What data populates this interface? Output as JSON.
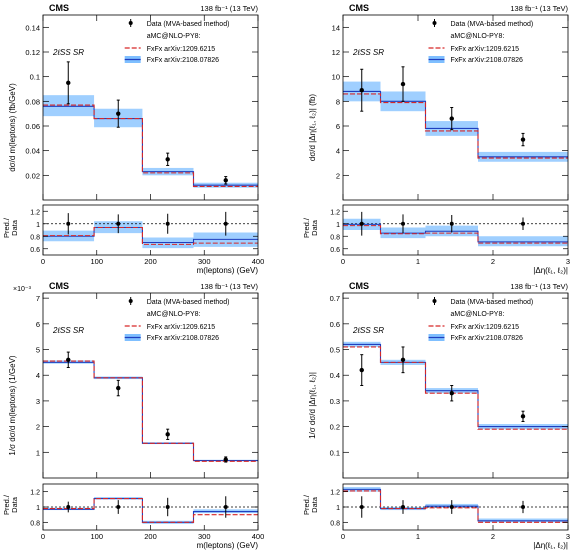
{
  "figure": {
    "experiment": "CMS",
    "lumi": "138 fb⁻¹ (13 TeV)",
    "region": "2ℓSS SR",
    "ratio_ylabel_top": "Pred./",
    "ratio_ylabel_bottom": "Data"
  },
  "legend": {
    "data": "Data (MVA-based method)",
    "header": "aMC@NLO-PY8:",
    "ref1": "FxFx arXiv:1209.6215",
    "ref2": "FxFx arXiv:2108.07826"
  },
  "colors": {
    "ref1_line": "#d62728",
    "ref2_line": "#1f3fbf",
    "ref2_band": "#7fbfff",
    "data": "#000000"
  },
  "chart_data": [
    {
      "type": "line",
      "style": "histogram",
      "name": "top-left",
      "xlabel": "m(leptons) (GeV)",
      "ylabel": "dσ/d m(leptons)  (fb/GeV)",
      "bin_edges": [
        0,
        95,
        185,
        280,
        400
      ],
      "xlim": [
        0,
        400
      ],
      "ylim": [
        0,
        0.15
      ],
      "xticks": [
        0,
        100,
        200,
        300,
        400
      ],
      "yticks": [
        0.02,
        0.04,
        0.06,
        0.08,
        0.1,
        0.12,
        0.14
      ],
      "ytick_labels": [
        "0.02",
        "0.04",
        "0.06",
        "0.08",
        "0.1",
        "0.12",
        "0.14"
      ],
      "exponent": "",
      "series": [
        {
          "name": "FxFx arXiv:1209.6215",
          "values": [
            0.077,
            0.066,
            0.022,
            0.011
          ]
        },
        {
          "name": "FxFx arXiv:2108.07826",
          "values": [
            0.076,
            0.066,
            0.023,
            0.012
          ],
          "band_low": [
            0.068,
            0.059,
            0.02,
            0.01
          ],
          "band_high": [
            0.085,
            0.074,
            0.026,
            0.014
          ]
        }
      ],
      "data": {
        "x": [
          47,
          140,
          232,
          340
        ],
        "y": [
          0.095,
          0.07,
          0.033,
          0.016
        ],
        "yerr": [
          0.017,
          0.011,
          0.005,
          0.003
        ]
      },
      "ratio": {
        "ylim": [
          0.5,
          1.3
        ],
        "yticks": [
          0.6,
          0.8,
          1,
          1.2
        ],
        "ytick_labels": [
          "0.6",
          "0.8",
          "1",
          "1.2"
        ],
        "ref1": [
          0.81,
          0.94,
          0.67,
          0.69
        ],
        "ref2": [
          0.8,
          0.94,
          0.7,
          0.75
        ],
        "band_low": [
          0.72,
          0.85,
          0.61,
          0.63
        ],
        "band_high": [
          0.89,
          1.04,
          0.78,
          0.86
        ],
        "data_yerr": [
          0.17,
          0.15,
          0.16,
          0.19
        ]
      }
    },
    {
      "type": "line",
      "style": "histogram",
      "name": "top-right",
      "xlabel": "|Δη(ℓ₁, ℓ₂)|",
      "ylabel": "dσ/d |Δη(ℓ₁, ℓ₂)|  (fb)",
      "bin_edges": [
        0,
        0.5,
        1.1,
        1.8,
        3
      ],
      "xlim": [
        0,
        3
      ],
      "ylim": [
        0,
        15
      ],
      "xticks": [
        0,
        1,
        2,
        3
      ],
      "yticks": [
        2,
        4,
        6,
        8,
        10,
        12,
        14
      ],
      "ytick_labels": [
        "2",
        "4",
        "6",
        "8",
        "10",
        "12",
        "14"
      ],
      "exponent": "",
      "series": [
        {
          "name": "FxFx arXiv:1209.6215",
          "values": [
            8.6,
            7.9,
            5.6,
            3.4
          ]
        },
        {
          "name": "FxFx arXiv:2108.07826",
          "values": [
            8.8,
            8.0,
            5.8,
            3.5
          ],
          "band_low": [
            8.0,
            7.2,
            5.2,
            3.1
          ],
          "band_high": [
            9.6,
            8.8,
            6.4,
            3.9
          ]
        }
      ],
      "data": {
        "x": [
          0.25,
          0.8,
          1.45,
          2.4
        ],
        "y": [
          8.9,
          9.4,
          6.6,
          4.9
        ],
        "yerr": [
          1.7,
          1.4,
          0.9,
          0.5
        ]
      },
      "ratio": {
        "ylim": [
          0.5,
          1.3
        ],
        "yticks": [
          0.6,
          0.8,
          1,
          1.2
        ],
        "ytick_labels": [
          "0.6",
          "0.8",
          "1",
          "1.2"
        ],
        "ref1": [
          0.97,
          0.84,
          0.85,
          0.69
        ],
        "ref2": [
          0.99,
          0.85,
          0.88,
          0.71
        ],
        "band_low": [
          0.9,
          0.77,
          0.8,
          0.64
        ],
        "band_high": [
          1.08,
          0.94,
          0.97,
          0.8
        ],
        "data_yerr": [
          0.19,
          0.15,
          0.14,
          0.1
        ]
      }
    },
    {
      "type": "line",
      "style": "histogram",
      "name": "bottom-left",
      "xlabel": "m(leptons) (GeV)",
      "ylabel": "1/σ dσ/d m(leptons)  (1/GeV)",
      "bin_edges": [
        0,
        95,
        185,
        280,
        400
      ],
      "xlim": [
        0,
        400
      ],
      "ylim": [
        0,
        0.0072
      ],
      "xticks": [
        0,
        100,
        200,
        300,
        400
      ],
      "yticks": [
        0.001,
        0.002,
        0.003,
        0.004,
        0.005,
        0.006,
        0.007
      ],
      "ytick_labels": [
        "1",
        "2",
        "3",
        "4",
        "5",
        "6",
        "7"
      ],
      "exponent": "×10⁻³",
      "series": [
        {
          "name": "FxFx arXiv:1209.6215",
          "values": [
            0.00455,
            0.0039,
            0.00135,
            0.00065
          ]
        },
        {
          "name": "FxFx arXiv:2108.07826",
          "values": [
            0.0045,
            0.0039,
            0.00135,
            0.00068
          ],
          "band_low": [
            0.00445,
            0.00385,
            0.00132,
            0.00066
          ],
          "band_high": [
            0.00458,
            0.00395,
            0.00139,
            0.00071
          ]
        }
      ],
      "data": {
        "x": [
          47,
          140,
          232,
          340
        ],
        "y": [
          0.0046,
          0.0035,
          0.0017,
          0.00072
        ],
        "yerr": [
          0.0003,
          0.0003,
          0.0002,
          0.0001
        ]
      },
      "ratio": {
        "ylim": [
          0.7,
          1.3
        ],
        "yticks": [
          0.8,
          1,
          1.2
        ],
        "ytick_labels": [
          "0.8",
          "1",
          "1.2"
        ],
        "ref1": [
          0.98,
          1.11,
          0.8,
          0.9
        ],
        "ref2": [
          0.97,
          1.11,
          0.8,
          0.94
        ],
        "band_low": [
          0.96,
          1.1,
          0.78,
          0.92
        ],
        "band_high": [
          0.99,
          1.13,
          0.82,
          0.97
        ],
        "data_yerr": [
          0.07,
          0.09,
          0.12,
          0.14
        ]
      }
    },
    {
      "type": "line",
      "style": "histogram",
      "name": "bottom-right",
      "xlabel": "|Δη(ℓ₁, ℓ₂)|",
      "ylabel": "1/σ dσ/d |Δη(ℓ₁, ℓ₂)|",
      "bin_edges": [
        0,
        0.5,
        1.1,
        1.8,
        3
      ],
      "xlim": [
        0,
        3
      ],
      "ylim": [
        0,
        0.72
      ],
      "xticks": [
        0,
        1,
        2,
        3
      ],
      "yticks": [
        0.1,
        0.2,
        0.3,
        0.4,
        0.5,
        0.6,
        0.7
      ],
      "ytick_labels": [
        "0.1",
        "0.2",
        "0.3",
        "0.4",
        "0.5",
        "0.6",
        "0.7"
      ],
      "exponent": "",
      "series": [
        {
          "name": "FxFx arXiv:1209.6215",
          "values": [
            0.51,
            0.45,
            0.33,
            0.19
          ]
        },
        {
          "name": "FxFx arXiv:2108.07826",
          "values": [
            0.52,
            0.45,
            0.34,
            0.2
          ],
          "band_low": [
            0.51,
            0.44,
            0.33,
            0.19
          ],
          "band_high": [
            0.53,
            0.46,
            0.35,
            0.21
          ]
        }
      ],
      "data": {
        "x": [
          0.25,
          0.8,
          1.45,
          2.4
        ],
        "y": [
          0.42,
          0.46,
          0.33,
          0.24
        ],
        "yerr": [
          0.06,
          0.05,
          0.03,
          0.02
        ]
      },
      "ratio": {
        "ylim": [
          0.7,
          1.3
        ],
        "yticks": [
          0.8,
          1,
          1.2
        ],
        "ytick_labels": [
          "0.8",
          "1",
          "1.2"
        ],
        "ref1": [
          1.21,
          0.98,
          0.99,
          0.8
        ],
        "ref2": [
          1.23,
          0.98,
          1.01,
          0.82
        ],
        "band_low": [
          1.2,
          0.96,
          0.99,
          0.8
        ],
        "band_high": [
          1.26,
          1.0,
          1.04,
          0.85
        ],
        "data_yerr": [
          0.14,
          0.09,
          0.09,
          0.08
        ]
      }
    }
  ]
}
